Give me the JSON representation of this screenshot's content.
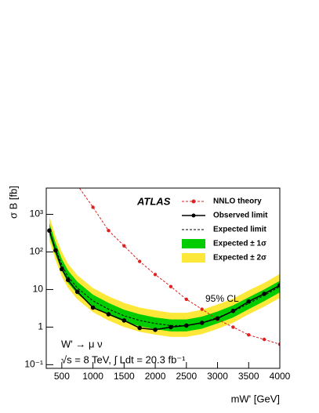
{
  "chart_data": {
    "type": "line",
    "log_y": true,
    "xlabel": "mW' [GeV]",
    "ylabel": "σ B [fb]",
    "annotations": [
      "ATLAS",
      "95% CL",
      "W' → μ ν",
      "√s = 8 TeV, ∫ Ldt = 20.3 fb⁻¹"
    ],
    "legend": "upper right",
    "x": [
      300,
      400,
      500,
      600,
      750,
      1000,
      1250,
      1500,
      1750,
      2000,
      2250,
      2500,
      2750,
      3000,
      3250,
      3500,
      3750,
      4000
    ],
    "series": [
      {
        "name": "NNLO theory",
        "color": "#dd2222",
        "style": "dashed-markers",
        "values": [
          null,
          null,
          null,
          null,
          6000,
          1550,
          370,
          145,
          56,
          25,
          12,
          5.5,
          3.0,
          1.6,
          1.0,
          0.62,
          0.47,
          0.35
        ]
      },
      {
        "name": "Observed limit",
        "color": "#000000",
        "style": "solid-markers",
        "values": [
          370,
          110,
          35,
          18,
          8.7,
          3.3,
          2.2,
          1.5,
          0.95,
          0.85,
          1.0,
          1.1,
          1.3,
          1.7,
          2.7,
          4.8,
          7.7,
          13
        ]
      },
      {
        "name": "Expected  limit",
        "color": "#000000",
        "style": "dashed",
        "values": [
          400,
          120,
          45,
          22,
          11,
          5,
          3.0,
          2.0,
          1.5,
          1.25,
          1.1,
          1.1,
          1.3,
          1.8,
          2.6,
          4.3,
          7,
          12
        ]
      },
      {
        "name": "Expected ± 1σ",
        "color": "#00cc00",
        "style": "band",
        "low": [
          280,
          84,
          32,
          15,
          7.7,
          3.5,
          2.1,
          1.4,
          1.05,
          0.88,
          0.77,
          0.77,
          0.91,
          1.26,
          1.8,
          3.0,
          4.9,
          8.4
        ],
        "high": [
          580,
          175,
          65,
          32,
          16,
          7.3,
          4.4,
          2.9,
          2.2,
          1.8,
          1.6,
          1.6,
          1.9,
          2.6,
          3.8,
          6.2,
          10,
          17
        ]
      },
      {
        "name": "Expected ± 2σ",
        "color": "#fde83a",
        "style": "band",
        "low": [
          200,
          60,
          22,
          11,
          5.5,
          2.5,
          1.5,
          1.0,
          0.75,
          0.63,
          0.55,
          0.55,
          0.65,
          0.9,
          1.3,
          2.2,
          3.5,
          6
        ],
        "high": [
          880,
          260,
          100,
          48,
          24,
          11,
          6.6,
          4.4,
          3.3,
          2.8,
          2.4,
          2.4,
          2.9,
          4,
          5.7,
          9.5,
          15,
          26
        ]
      }
    ],
    "xlim": [
      250,
      4000
    ],
    "xticks": [
      500,
      1000,
      1500,
      2000,
      2500,
      3000,
      3500,
      4000
    ],
    "ylim": [
      0.08,
      5000
    ],
    "yticks": [
      {
        "value": 0.1,
        "label": "10⁻¹"
      },
      1,
      10,
      {
        "value": 100,
        "label": "10²"
      },
      {
        "value": 1000,
        "label": "10³"
      }
    ]
  }
}
